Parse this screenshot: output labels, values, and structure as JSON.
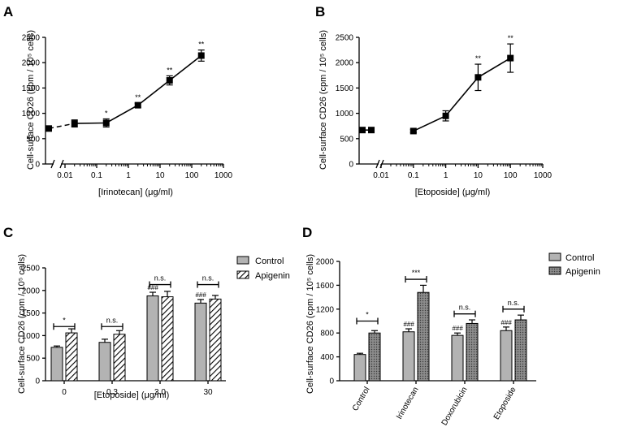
{
  "chart_data": [
    {
      "panel": "A",
      "type": "line",
      "xscale": "log",
      "xlabel": "[Irinotecan] (μg/ml)",
      "ylabel": "Cell-surface CD26 (cpm / 10⁵ cells)",
      "ylim": [
        0,
        2500
      ],
      "yticks": [
        "0",
        "500",
        "1000",
        "1500",
        "2000",
        "2500"
      ],
      "xticks": [
        "0.01",
        "0.1",
        "1",
        "10",
        "100",
        "1000"
      ],
      "control_point": {
        "y": 700,
        "err": 30
      },
      "points": [
        {
          "x": 0.02,
          "y": 800,
          "err": 70,
          "sig": ""
        },
        {
          "x": 0.2,
          "y": 810,
          "err": 80,
          "sig": "*"
        },
        {
          "x": 2,
          "y": 1160,
          "err": 40,
          "sig": "**"
        },
        {
          "x": 20,
          "y": 1650,
          "err": 90,
          "sig": "**"
        },
        {
          "x": 200,
          "y": 2140,
          "err": 110,
          "sig": "**"
        }
      ]
    },
    {
      "panel": "B",
      "type": "line",
      "xscale": "log",
      "xlabel": "[Etoposide] (μg/ml)",
      "ylabel": "Cell-surface CD26 (cpm / 10⁵ cells)",
      "ylim": [
        0,
        2500
      ],
      "yticks": [
        "0",
        "500",
        "1000",
        "1500",
        "2000",
        "2500"
      ],
      "xticks": [
        "0.01",
        "0.1",
        "1",
        "10",
        "100",
        "1000"
      ],
      "control_point": {
        "y": 670,
        "err": 30
      },
      "points": [
        {
          "x": 0.005,
          "y": 670,
          "err": 20,
          "sig": ""
        },
        {
          "x": 0.1,
          "y": 650,
          "err": 30,
          "sig": ""
        },
        {
          "x": 1,
          "y": 950,
          "err": 100,
          "sig": ""
        },
        {
          "x": 10,
          "y": 1710,
          "err": 260,
          "sig": "**"
        },
        {
          "x": 100,
          "y": 2090,
          "err": 280,
          "sig": "**"
        }
      ]
    },
    {
      "panel": "C",
      "type": "bar",
      "xlabel": "[Etoposide] (μg/ml)",
      "ylabel": "Cell-surface CD26 (cpm / 10⁵ cells)",
      "ylim": [
        0,
        2500
      ],
      "yticks": [
        "0",
        "500",
        "1000",
        "1500",
        "2000",
        "2500"
      ],
      "categories": [
        "0",
        "0.3",
        "3.0",
        "30"
      ],
      "series": [
        {
          "name": "Control",
          "values": [
            740,
            850,
            1880,
            1720
          ],
          "errors": [
            30,
            70,
            80,
            80
          ]
        },
        {
          "name": "Apigenin",
          "values": [
            1060,
            1030,
            1860,
            1810
          ],
          "errors": [
            90,
            80,
            120,
            80
          ]
        }
      ],
      "hashes": [
        "",
        "",
        "###",
        "###"
      ],
      "sig": [
        "*",
        "n.s.",
        "n.s.",
        "n.s."
      ],
      "bracket_y": [
        1200,
        1200,
        2130,
        2130
      ]
    },
    {
      "panel": "D",
      "type": "bar",
      "xlabel": "",
      "ylabel": "Cell-surface CD26 (cpm / 10⁵ cells)",
      "ylim": [
        0,
        2000
      ],
      "yticks": [
        "0",
        "400",
        "800",
        "1200",
        "1600",
        "2000"
      ],
      "categories": [
        "Control",
        "Irinotecan",
        "Doxorubicin",
        "Etoposide"
      ],
      "series": [
        {
          "name": "Control",
          "values": [
            440,
            820,
            760,
            840
          ],
          "errors": [
            20,
            50,
            40,
            60
          ]
        },
        {
          "name": "Apigenin",
          "values": [
            800,
            1480,
            960,
            1020
          ],
          "errors": [
            40,
            120,
            60,
            80
          ]
        }
      ],
      "hashes": [
        "",
        "###",
        "###",
        "###"
      ],
      "sig": [
        "*",
        "***",
        "n.s.",
        "n.s."
      ],
      "bracket_y": [
        1000,
        1700,
        1120,
        1200
      ]
    }
  ],
  "colors": {
    "control_fill": "#b3b3b3",
    "apigenin_fill_D": "#8c8c8c",
    "line": "#000000"
  }
}
